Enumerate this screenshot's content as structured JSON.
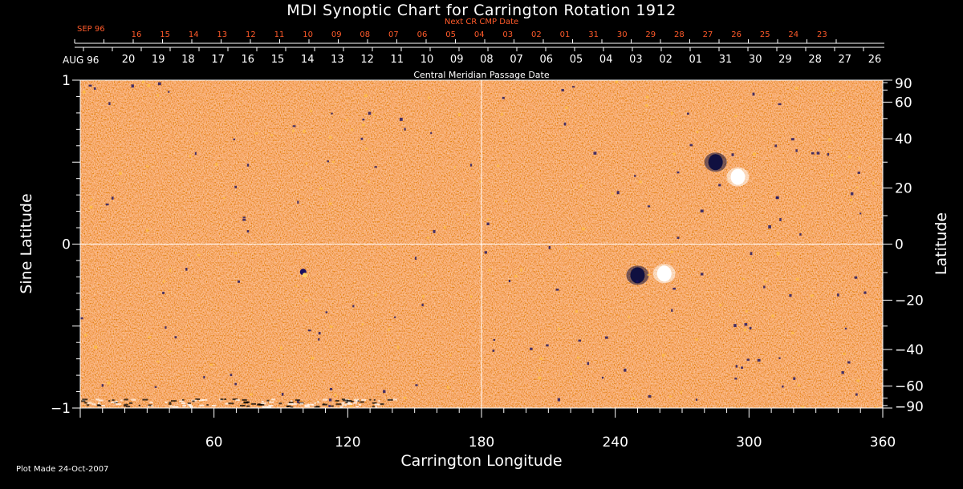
{
  "title": "MDI Synoptic Chart for Carrington Rotation 1912",
  "next_cr_label": "Next CR CMP Date",
  "cmp_label": "Central Meridian Passage Date",
  "top_axis": {
    "month": "SEP 96",
    "dates": [
      "16",
      "15",
      "14",
      "13",
      "12",
      "11",
      "10",
      "09",
      "08",
      "07",
      "06",
      "05",
      "04",
      "03",
      "02",
      "01",
      "31",
      "30",
      "29",
      "28",
      "27",
      "26",
      "25",
      "24",
      "23"
    ]
  },
  "bottom_date_axis": {
    "month": "AUG 96",
    "dates": [
      "20",
      "19",
      "18",
      "17",
      "16",
      "15",
      "14",
      "13",
      "12",
      "11",
      "10",
      "09",
      "08",
      "07",
      "06",
      "05",
      "04",
      "03",
      "02",
      "01",
      "31",
      "30",
      "29",
      "28",
      "27",
      "26"
    ]
  },
  "footer": "Plot Made 24-Oct-2007",
  "colors": {
    "background": "#000000",
    "map_base": "#e8401a",
    "map_bright": "#ffb030",
    "map_dark": "#1a1060",
    "red_text": "#ff5a2a"
  },
  "chart_data": {
    "type": "heatmap",
    "title": "MDI Synoptic Chart for Carrington Rotation 1912",
    "xlabel": "Carrington Longitude",
    "ylabel": "Sine Latitude",
    "ylabel_right": "Latitude",
    "xlim": [
      0,
      360
    ],
    "ylim": [
      -1,
      1
    ],
    "x_ticks": [
      "60",
      "120",
      "180",
      "240",
      "300",
      "360"
    ],
    "y_ticks_left": [
      "1",
      "0",
      "−1"
    ],
    "y_ticks_right": [
      "90",
      "60",
      "40",
      "20",
      "0",
      "−20",
      "−40",
      "−60",
      "−90"
    ],
    "center_lines": {
      "longitude": 180,
      "sine_latitude": 0
    },
    "features": [
      {
        "longitude": 250,
        "sine_latitude": -0.19,
        "polarity": "negative"
      },
      {
        "longitude": 262,
        "sine_latitude": -0.18,
        "polarity": "positive"
      },
      {
        "longitude": 285,
        "sine_latitude": 0.5,
        "polarity": "negative"
      },
      {
        "longitude": 295,
        "sine_latitude": 0.41,
        "polarity": "positive"
      },
      {
        "longitude": 100,
        "sine_latitude": -0.17,
        "polarity": "mixed"
      }
    ]
  }
}
